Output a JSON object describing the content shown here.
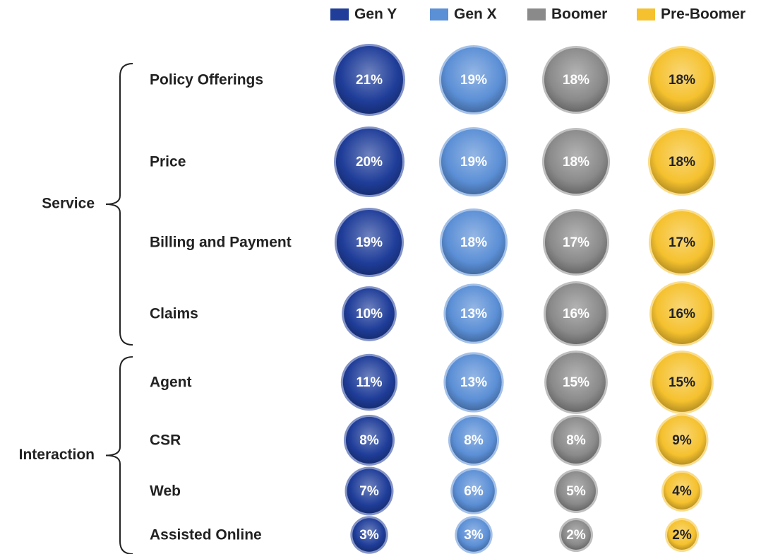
{
  "chart_data": {
    "type": "bubble",
    "categories": [
      "Policy Offerings",
      "Price",
      "Billing and Payment",
      "Claims",
      "Agent",
      "CSR",
      "Web",
      "Assisted Online"
    ],
    "groups": [
      {
        "label": "Service",
        "rows": [
          "Policy Offerings",
          "Price",
          "Billing and Payment",
          "Claims"
        ]
      },
      {
        "label": "Interaction",
        "rows": [
          "Agent",
          "CSR",
          "Web",
          "Assisted Online"
        ]
      }
    ],
    "series": [
      {
        "name": "Gen Y",
        "color": "#1f3d99",
        "values": [
          21,
          20,
          19,
          10,
          11,
          8,
          7,
          3
        ],
        "value_labels": [
          "21%",
          "20%",
          "19%",
          "10%",
          "11%",
          "8%",
          "7%",
          "3%"
        ]
      },
      {
        "name": "Gen X",
        "color": "#5b8fd6",
        "values": [
          19,
          19,
          18,
          13,
          13,
          8,
          6,
          3
        ],
        "value_labels": [
          "19%",
          "19%",
          "18%",
          "13%",
          "13%",
          "8%",
          "6%",
          "3%"
        ]
      },
      {
        "name": "Boomer",
        "color": "#8a8a8a",
        "values": [
          18,
          18,
          17,
          16,
          15,
          8,
          5,
          2
        ],
        "value_labels": [
          "18%",
          "18%",
          "17%",
          "16%",
          "15%",
          "8%",
          "5%",
          "2%"
        ]
      },
      {
        "name": "Pre-Boomer",
        "color": "#f5c12e",
        "values": [
          18,
          18,
          17,
          16,
          15,
          9,
          4,
          2
        ],
        "value_labels": [
          "18%",
          "18%",
          "17%",
          "16%",
          "15%",
          "9%",
          "4%",
          "2%"
        ]
      }
    ],
    "legend": "top"
  }
}
